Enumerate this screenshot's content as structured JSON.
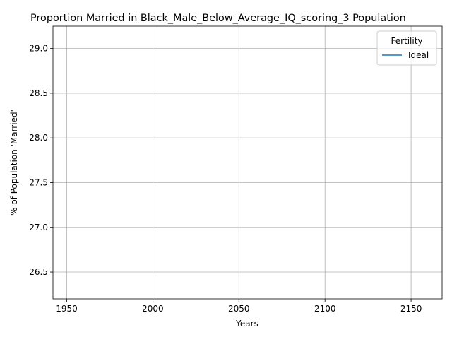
{
  "chart_data": {
    "type": "line",
    "title": "Proportion Married in Black_Male_Below_Average_IQ_scoring_3 Population",
    "xlabel": "Years",
    "ylabel": "% of Population 'Married'",
    "xlim": [
      1942,
      2168
    ],
    "ylim": [
      26.2,
      29.25
    ],
    "xticks": [
      1950,
      2000,
      2050,
      2100,
      2150
    ],
    "yticks": [
      26.5,
      27.0,
      27.5,
      28.0,
      28.5,
      29.0
    ],
    "grid": true,
    "legend": {
      "title": "Fertility",
      "placement": "top-right"
    },
    "series": [
      {
        "name": "Ideal",
        "color": "#1f77b4",
        "x": [],
        "y": []
      }
    ]
  }
}
